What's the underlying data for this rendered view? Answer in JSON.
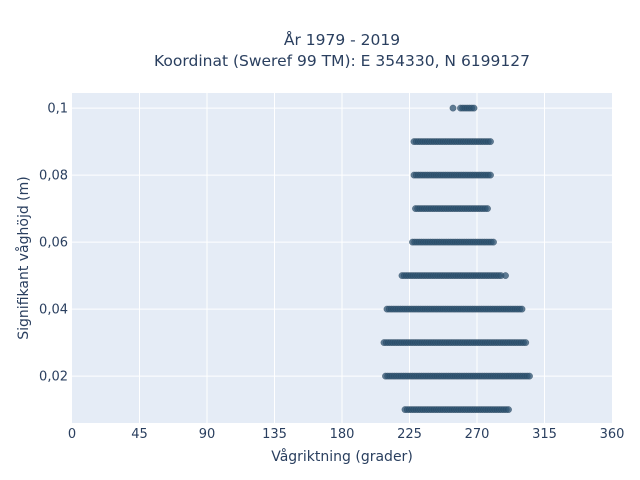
{
  "chart_data": {
    "type": "scatter",
    "title_line1": "År 1979 - 2019",
    "title_line2": "Koordinat (Sweref 99 TM): E 354330, N 6199127",
    "xlabel": "Vågriktning (grader)",
    "ylabel": "Signifikant våghöjd (m)",
    "xlim": [
      0,
      360
    ],
    "ylim": [
      0.006,
      0.1045
    ],
    "xticks": [
      0,
      45,
      90,
      135,
      180,
      225,
      270,
      315,
      360
    ],
    "xtick_labels": [
      "0",
      "45",
      "90",
      "135",
      "180",
      "225",
      "270",
      "315",
      "360"
    ],
    "yticks": [
      0.02,
      0.04,
      0.06,
      0.08,
      0.1
    ],
    "ytick_labels": [
      "0,02",
      "0,04",
      "0,06",
      "0,08",
      "0,1"
    ],
    "grid": true,
    "colors": {
      "plot_bg": "#e5ecf6",
      "marker": "#2e5370",
      "text": "#2a3f5f"
    },
    "bands": [
      {
        "y": 0.01,
        "x_min": 222,
        "x_max": 292,
        "outliers": []
      },
      {
        "y": 0.02,
        "x_min": 209,
        "x_max": 305,
        "outliers": []
      },
      {
        "y": 0.03,
        "x_min": 208,
        "x_max": 303,
        "outliers": []
      },
      {
        "y": 0.04,
        "x_min": 210,
        "x_max": 301,
        "outliers": []
      },
      {
        "y": 0.05,
        "x_min": 220,
        "x_max": 287,
        "outliers": [
          289
        ]
      },
      {
        "y": 0.06,
        "x_min": 227,
        "x_max": 282,
        "outliers": []
      },
      {
        "y": 0.07,
        "x_min": 229,
        "x_max": 278,
        "outliers": []
      },
      {
        "y": 0.08,
        "x_min": 228,
        "x_max": 279,
        "outliers": []
      },
      {
        "y": 0.09,
        "x_min": 228,
        "x_max": 279,
        "outliers": []
      },
      {
        "y": 0.1,
        "x_min": 259,
        "x_max": 269,
        "outliers": [
          254
        ]
      }
    ]
  }
}
